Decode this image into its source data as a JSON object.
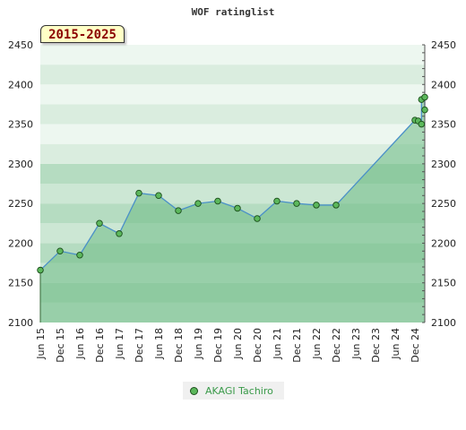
{
  "chart_data": {
    "type": "line",
    "title": "WOF ratinglist",
    "range_label": "2015-2025",
    "ylim": [
      2100,
      2450
    ],
    "yticks": [
      2100,
      2150,
      2200,
      2250,
      2300,
      2350,
      2400,
      2450
    ],
    "ytick_labels": [
      "2100",
      "2150",
      "2200",
      "2250",
      "2300",
      "2350",
      "2400",
      "2450"
    ],
    "xticks": [
      "2015-06",
      "2015-12",
      "2016-06",
      "2016-12",
      "2017-06",
      "2017-12",
      "2018-06",
      "2018-12",
      "2019-06",
      "2019-12",
      "2020-06",
      "2020-12",
      "2021-06",
      "2021-12",
      "2022-06",
      "2022-12",
      "2023-06",
      "2023-12",
      "2024-06",
      "2024-12"
    ],
    "xtick_labels": [
      "Jun 15",
      "Dec 15",
      "Jun 16",
      "Dec 16",
      "Jun 17",
      "Dec 17",
      "Jun 18",
      "Dec 18",
      "Jun 19",
      "Dec 19",
      "Jun 20",
      "Dec 20",
      "Jun 21",
      "Dec 21",
      "Jun 22",
      "Dec 22",
      "Jun 23",
      "Dec 23",
      "Jun 24",
      "Dec 24"
    ],
    "xlim": [
      "2015-06",
      "2025-03"
    ],
    "grid": true,
    "legend_position": "bottom-center",
    "series": [
      {
        "name": "AKAGI Tachiro",
        "color": "#5cb85c",
        "line_color": "#4a90c8",
        "fill_color": "#6dbb85",
        "points": [
          {
            "x": "2015-06",
            "y": 2166
          },
          {
            "x": "2015-12",
            "y": 2190
          },
          {
            "x": "2016-06",
            "y": 2185
          },
          {
            "x": "2016-12",
            "y": 2225
          },
          {
            "x": "2017-06",
            "y": 2212
          },
          {
            "x": "2017-12",
            "y": 2263
          },
          {
            "x": "2018-06",
            "y": 2260
          },
          {
            "x": "2018-12",
            "y": 2241
          },
          {
            "x": "2019-06",
            "y": 2250
          },
          {
            "x": "2019-12",
            "y": 2253
          },
          {
            "x": "2020-06",
            "y": 2244
          },
          {
            "x": "2020-12",
            "y": 2231
          },
          {
            "x": "2021-06",
            "y": 2253
          },
          {
            "x": "2021-12",
            "y": 2250
          },
          {
            "x": "2022-06",
            "y": 2248
          },
          {
            "x": "2022-12",
            "y": 2248
          },
          {
            "x": "2024-12",
            "y": 2355
          },
          {
            "x": "2025-01",
            "y": 2354
          },
          {
            "x": "2025-02",
            "y": 2350
          },
          {
            "x": "2025-02",
            "y": 2381
          },
          {
            "x": "2025-03",
            "y": 2384
          },
          {
            "x": "2025-03",
            "y": 2368
          }
        ]
      }
    ]
  },
  "legend": {
    "label": "AKAGI Tachiro"
  }
}
